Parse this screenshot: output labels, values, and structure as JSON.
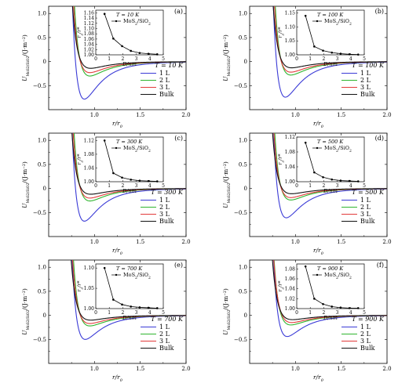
{
  "colors": {
    "1L": "#3a3ad6",
    "2L": "#2fb52f",
    "3L": "#e23a3a",
    "Bulk": "#111111",
    "inset": "#000000"
  },
  "chart_data": [
    {
      "panel_label": "(a)",
      "type": "line",
      "x_label": "r/r",
      "x_label_sub": "0",
      "y_label": "U",
      "y_label_sub": "MoS2/SiO2",
      "y_label_unit": "/(J·m",
      "y_label_sup": "−2",
      "xlim": [
        0.5,
        2.0
      ],
      "ylim": [
        -1.0,
        1.15
      ],
      "x_ticks": [
        "1.0",
        "1.5",
        "2.0"
      ],
      "y_ticks": [
        "−0.5",
        "0",
        "0.5",
        "1.0"
      ],
      "temperature": "T = 10 K",
      "legend": [
        "1 L",
        "2 L",
        "3 L",
        "Bulk"
      ],
      "series": [
        {
          "name": "1 L",
          "minimum": -0.78,
          "min_at": 0.89
        },
        {
          "name": "2 L",
          "minimum": -0.3,
          "min_at": 0.95
        },
        {
          "name": "3 L",
          "minimum": -0.23,
          "min_at": 0.95
        },
        {
          "name": "Bulk",
          "minimum": -0.14,
          "min_at": 0.96
        }
      ],
      "inset": {
        "temperature": "T = 10 K",
        "legend": "MoS2/SiO2",
        "x_label": "D/nm",
        "y_label": "r0/r*",
        "xlim": [
          0,
          5
        ],
        "ylim": [
          1.0,
          1.17
        ],
        "x_ticks": [
          "0",
          "1",
          "2",
          "3",
          "4",
          "5"
        ],
        "y_ticks": [
          "1.00",
          "1.02",
          "1.04",
          "1.06",
          "1.08",
          "1.10",
          "1.12",
          "1.14",
          "1.16"
        ],
        "x": [
          0.65,
          1.3,
          1.95,
          2.6,
          3.25,
          3.9,
          4.55
        ],
        "y": [
          1.156,
          1.062,
          1.033,
          1.015,
          1.007,
          1.004,
          1.002
        ]
      }
    },
    {
      "panel_label": "(b)",
      "type": "line",
      "x_label": "r/r",
      "x_label_sub": "0",
      "y_label": "U",
      "y_label_sub": "MoS2/SiO2",
      "y_label_unit": "/(J·m",
      "y_label_sup": "−2",
      "xlim": [
        0.5,
        2.0
      ],
      "ylim": [
        -1.0,
        1.15
      ],
      "x_ticks": [
        "1.0",
        "1.5",
        "2.0"
      ],
      "y_ticks": [
        "−0.5",
        "0",
        "0.5",
        "1.0"
      ],
      "temperature": "T = 100 K",
      "legend": [
        "1 L",
        "2 L",
        "3 L",
        "Bulk"
      ],
      "series": [
        {
          "name": "1 L",
          "minimum": -0.74,
          "min_at": 0.89
        },
        {
          "name": "2 L",
          "minimum": -0.28,
          "min_at": 0.95
        },
        {
          "name": "3 L",
          "minimum": -0.22,
          "min_at": 0.95
        },
        {
          "name": "Bulk",
          "minimum": -0.13,
          "min_at": 0.96
        }
      ],
      "inset": {
        "temperature": "T = 100 K",
        "legend": "MoS2/SiO2",
        "x_label": "D/nm",
        "y_label": "r0/r*",
        "xlim": [
          0,
          5
        ],
        "ylim": [
          1.0,
          1.16
        ],
        "x_ticks": [
          "0",
          "1",
          "2",
          "3",
          "4",
          "5"
        ],
        "y_ticks": [
          "1.00",
          "1.05",
          "1.10",
          "1.15"
        ],
        "x": [
          0.65,
          1.3,
          1.95,
          2.6,
          3.25,
          3.9,
          4.55
        ],
        "y": [
          1.14,
          1.03,
          1.015,
          1.008,
          1.004,
          1.002,
          1.001
        ]
      }
    },
    {
      "panel_label": "(c)",
      "type": "line",
      "x_label": "r/r",
      "x_label_sub": "0",
      "y_label": "U",
      "y_label_sub": "MoS2/SiO2",
      "y_label_unit": "/(J·m",
      "y_label_sup": "−2",
      "xlim": [
        0.5,
        2.0
      ],
      "ylim": [
        -1.0,
        1.15
      ],
      "x_ticks": [
        "1.0",
        "1.5",
        "2.0"
      ],
      "y_ticks": [
        "−0.5",
        "0",
        "0.5",
        "1.0"
      ],
      "temperature": "T = 300 K",
      "legend": [
        "1 L",
        "2 L",
        "3 L",
        "Bulk"
      ],
      "series": [
        {
          "name": "1 L",
          "minimum": -0.68,
          "min_at": 0.89
        },
        {
          "name": "2 L",
          "minimum": -0.26,
          "min_at": 0.95
        },
        {
          "name": "3 L",
          "minimum": -0.2,
          "min_at": 0.95
        },
        {
          "name": "Bulk",
          "minimum": -0.12,
          "min_at": 0.96
        }
      ],
      "inset": {
        "temperature": "T = 300 K",
        "legend": "MoS2/SiO2",
        "x_label": "D/nm",
        "y_label": "r0/r*",
        "xlim": [
          0,
          5
        ],
        "ylim": [
          1.0,
          1.13
        ],
        "x_ticks": [
          "0",
          "1",
          "2",
          "3",
          "4",
          "5"
        ],
        "y_ticks": [
          "1.00",
          "1.04",
          "1.08",
          "1.12"
        ],
        "x": [
          0.65,
          1.3,
          1.95,
          2.6,
          3.25,
          3.9,
          4.55
        ],
        "y": [
          1.12,
          1.025,
          1.012,
          1.006,
          1.003,
          1.002,
          1.001
        ]
      }
    },
    {
      "panel_label": "(d)",
      "type": "line",
      "x_label": "r/r",
      "x_label_sub": "0",
      "y_label": "U",
      "y_label_sub": "MoS2/SiO2",
      "y_label_unit": "/(J·m",
      "y_label_sup": "−2",
      "xlim": [
        0.5,
        2.0
      ],
      "ylim": [
        -1.0,
        1.15
      ],
      "x_ticks": [
        "1.0",
        "1.5",
        "2.0"
      ],
      "y_ticks": [
        "−0.5",
        "0",
        "0.5",
        "1.0"
      ],
      "temperature": "T = 500 K",
      "legend": [
        "1 L",
        "2 L",
        "3 L",
        "Bulk"
      ],
      "series": [
        {
          "name": "1 L",
          "minimum": -0.61,
          "min_at": 0.9
        },
        {
          "name": "2 L",
          "minimum": -0.24,
          "min_at": 0.95
        },
        {
          "name": "3 L",
          "minimum": -0.19,
          "min_at": 0.95
        },
        {
          "name": "Bulk",
          "minimum": -0.11,
          "min_at": 0.96
        }
      ],
      "inset": {
        "temperature": "T = 500 K",
        "legend": "MoS2/SiO2",
        "x_label": "D/nm",
        "y_label": "r0/r*",
        "xlim": [
          0,
          5
        ],
        "ylim": [
          1.0,
          1.12
        ],
        "x_ticks": [
          "0",
          "1",
          "2",
          "3",
          "4",
          "5"
        ],
        "y_ticks": [
          "1.00",
          "1.04",
          "1.08",
          "1.12"
        ],
        "x": [
          0.65,
          1.3,
          1.95,
          2.6,
          3.25,
          3.9,
          4.55
        ],
        "y": [
          1.105,
          1.025,
          1.012,
          1.006,
          1.003,
          1.002,
          1.001
        ]
      }
    },
    {
      "panel_label": "(e)",
      "type": "line",
      "x_label": "r/r",
      "x_label_sub": "0",
      "y_label": "U",
      "y_label_sub": "MoS2/SiO2",
      "y_label_unit": "/(J·m",
      "y_label_sup": "−2",
      "xlim": [
        0.5,
        2.0
      ],
      "ylim": [
        -1.0,
        1.15
      ],
      "x_ticks": [
        "1.0",
        "1.5",
        "2.0"
      ],
      "y_ticks": [
        "−0.5",
        "0",
        "0.5",
        "1.0"
      ],
      "temperature": "T = 700 K",
      "legend": [
        "1 L",
        "2 L",
        "3 L",
        "Bulk"
      ],
      "series": [
        {
          "name": "1 L",
          "minimum": -0.5,
          "min_at": 0.9
        },
        {
          "name": "2 L",
          "minimum": -0.22,
          "min_at": 0.95
        },
        {
          "name": "3 L",
          "minimum": -0.17,
          "min_at": 0.95
        },
        {
          "name": "Bulk",
          "minimum": -0.1,
          "min_at": 0.96
        }
      ],
      "inset": {
        "temperature": "T = 700 K",
        "legend": "MoS2/SiO2",
        "x_label": "D/nm",
        "y_label": "r0/r*",
        "xlim": [
          0,
          5
        ],
        "ylim": [
          1.0,
          1.11
        ],
        "x_ticks": [
          "0",
          "1",
          "2",
          "3",
          "4",
          "5"
        ],
        "y_ticks": [
          "1.00",
          "1.05",
          "1.10"
        ],
        "x": [
          0.65,
          1.3,
          1.95,
          2.6,
          3.25,
          3.9,
          4.55
        ],
        "y": [
          1.1,
          1.022,
          1.01,
          1.005,
          1.003,
          1.002,
          1.001
        ]
      }
    },
    {
      "panel_label": "(f)",
      "type": "line",
      "x_label": "r/r",
      "x_label_sub": "0",
      "y_label": "U",
      "y_label_sub": "MoS2/SiO2",
      "y_label_unit": "/(J·m",
      "y_label_sup": "−2",
      "xlim": [
        0.5,
        2.0
      ],
      "ylim": [
        -1.0,
        1.15
      ],
      "x_ticks": [
        "1.0",
        "1.5",
        "2.0"
      ],
      "y_ticks": [
        "−0.5",
        "0",
        "0.5",
        "1.0"
      ],
      "temperature": "T = 900 K",
      "legend": [
        "1 L",
        "2 L",
        "3 L",
        "Bulk"
      ],
      "series": [
        {
          "name": "1 L",
          "minimum": -0.44,
          "min_at": 0.91
        },
        {
          "name": "2 L",
          "minimum": -0.2,
          "min_at": 0.95
        },
        {
          "name": "3 L",
          "minimum": -0.15,
          "min_at": 0.96
        },
        {
          "name": "Bulk",
          "minimum": -0.09,
          "min_at": 0.97
        }
      ],
      "inset": {
        "temperature": "T = 900 K",
        "legend": "MoS2/SiO2",
        "x_label": "D/nm",
        "y_label": "r0/r*",
        "xlim": [
          0,
          5
        ],
        "ylim": [
          1.0,
          1.09
        ],
        "x_ticks": [
          "0",
          "1",
          "2",
          "3",
          "4",
          "5"
        ],
        "y_ticks": [
          "1.00",
          "1.02",
          "1.04",
          "1.06",
          "1.08"
        ],
        "x": [
          0.65,
          1.3,
          1.95,
          2.6,
          3.25,
          3.9,
          4.55
        ],
        "y": [
          1.085,
          1.02,
          1.009,
          1.004,
          1.002,
          1.001,
          1.001
        ]
      }
    }
  ]
}
